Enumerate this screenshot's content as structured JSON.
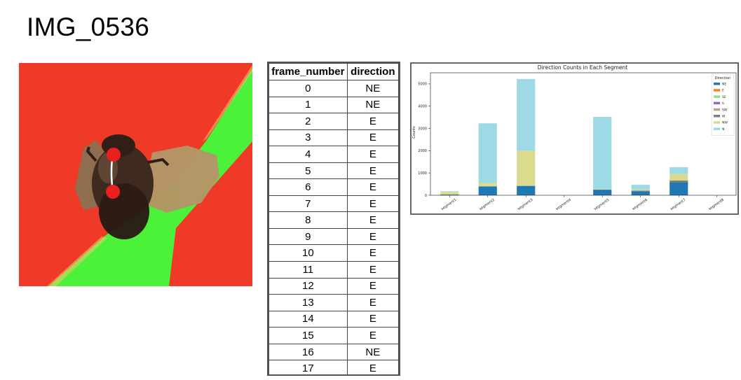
{
  "slide": {
    "title": "IMG_0536"
  },
  "frame_table": {
    "headers": [
      "frame_number",
      "direction"
    ],
    "rows": [
      [
        "0",
        "NE"
      ],
      [
        "1",
        "NE"
      ],
      [
        "2",
        "E"
      ],
      [
        "3",
        "E"
      ],
      [
        "4",
        "E"
      ],
      [
        "5",
        "E"
      ],
      [
        "6",
        "E"
      ],
      [
        "7",
        "E"
      ],
      [
        "8",
        "E"
      ],
      [
        "9",
        "E"
      ],
      [
        "10",
        "E"
      ],
      [
        "11",
        "E"
      ],
      [
        "12",
        "E"
      ],
      [
        "13",
        "E"
      ],
      [
        "14",
        "E"
      ],
      [
        "15",
        "E"
      ],
      [
        "16",
        "NE"
      ],
      [
        "17",
        "E"
      ]
    ]
  },
  "colors": {
    "background_red": "#ee3a27",
    "stripe_green": "#4cf23a",
    "marker_red": "#e8211f"
  },
  "chart_data": {
    "type": "bar",
    "stacked": true,
    "title": "Direction Counts in Each Segment",
    "xlabel": "",
    "ylabel": "Counts",
    "ylim": [
      0,
      5500
    ],
    "yticks": [
      0,
      1000,
      2000,
      3000,
      4000,
      5000
    ],
    "categories": [
      "segment1",
      "segment2",
      "segment3",
      "segment4",
      "segment5",
      "segment6",
      "segment7",
      "segment8"
    ],
    "legend": {
      "title": "Direction",
      "placement": "top-right"
    },
    "series": [
      {
        "name": "NE",
        "color": "#1f77b4",
        "values": [
          30,
          400,
          420,
          0,
          250,
          180,
          580,
          0
        ]
      },
      {
        "name": "E",
        "color": "#ff7f0e",
        "values": [
          0,
          0,
          0,
          0,
          0,
          0,
          0,
          0
        ]
      },
      {
        "name": "SE",
        "color": "#98df8a",
        "values": [
          0,
          0,
          0,
          0,
          0,
          0,
          0,
          0
        ]
      },
      {
        "name": "S",
        "color": "#9467bd",
        "values": [
          0,
          0,
          0,
          0,
          0,
          0,
          0,
          0
        ]
      },
      {
        "name": "SW",
        "color": "#c49c94",
        "values": [
          0,
          0,
          0,
          0,
          0,
          0,
          0,
          0
        ]
      },
      {
        "name": "W",
        "color": "#7f7f7f",
        "values": [
          0,
          0,
          0,
          0,
          0,
          30,
          80,
          0
        ]
      },
      {
        "name": "NW",
        "color": "#dbdb8d",
        "values": [
          120,
          150,
          1580,
          0,
          30,
          50,
          290,
          0
        ]
      },
      {
        "name": "N",
        "color": "#9edae5",
        "values": [
          30,
          2680,
          3220,
          0,
          3240,
          210,
          310,
          0
        ]
      }
    ]
  }
}
